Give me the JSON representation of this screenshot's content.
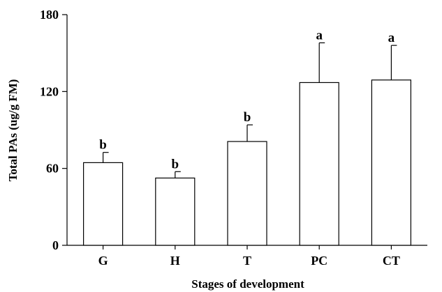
{
  "chart_data": {
    "type": "bar",
    "title": "",
    "xlabel": "Stages of development",
    "ylabel": "Total PAs (ug/g FM)",
    "categories": [
      "G",
      "H",
      "T",
      "PC",
      "CT"
    ],
    "values": [
      64.5,
      52.5,
      81,
      127,
      129
    ],
    "errors": [
      8,
      5,
      13,
      31,
      27
    ],
    "significance": [
      "b",
      "b",
      "b",
      "a",
      "a"
    ],
    "ylim": [
      0,
      180
    ],
    "yticks": [
      0,
      60,
      120,
      180
    ],
    "grid": false,
    "legend": "none",
    "bar_fill": "#ffffff",
    "bar_stroke": "#000000"
  }
}
